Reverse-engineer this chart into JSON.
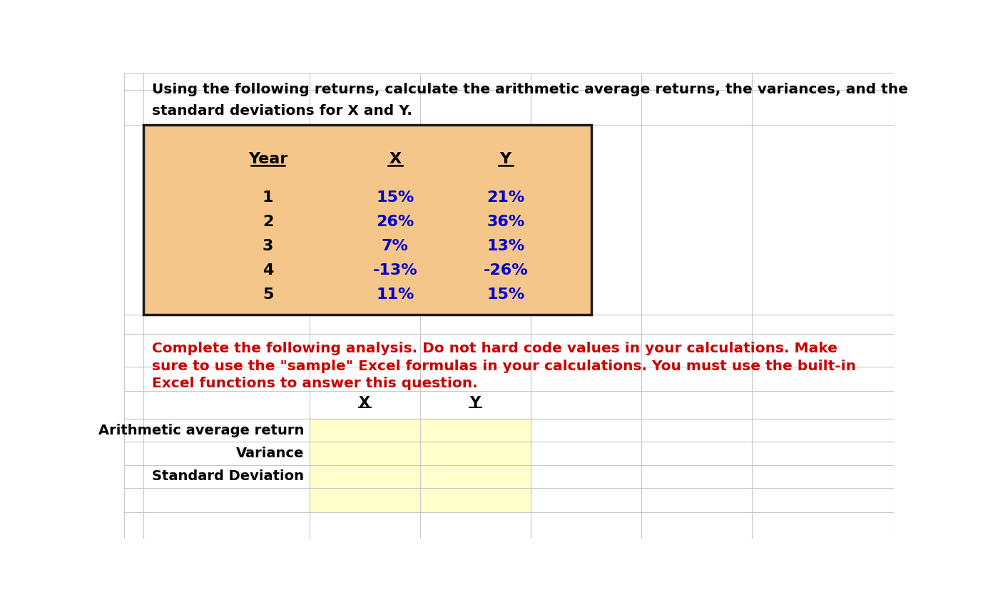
{
  "title_text1": "Using the following returns, calculate the arithmetic average returns, the variances, and the",
  "title_text2": "standard deviations for X and Y.",
  "table_bg_color": "#F4C68A",
  "table_border_color": "#1A1A1A",
  "years": [
    "1",
    "2",
    "3",
    "4",
    "5"
  ],
  "x_values": [
    "15%",
    "26%",
    "7%",
    "-13%",
    "11%"
  ],
  "y_values": [
    "21%",
    "36%",
    "13%",
    "-26%",
    "15%"
  ],
  "data_color": "#0000CC",
  "header_color": "#000000",
  "red_text1": "Complete the following analysis. Do not hard code values in your calculations. Make",
  "red_text2": "sure to use the \"sample\" Excel formulas in your calculations. You must use the built-in",
  "red_text3": "Excel functions to answer this question.",
  "red_color": "#CC0000",
  "bottom_labels": [
    "Arithmetic average return",
    "Variance",
    "Standard Deviation"
  ],
  "bottom_header_x": "X",
  "bottom_header_y": "Y",
  "yellow_bg": "#FFFFCC",
  "grid_color": "#C8C8C8",
  "white_bg": "#FFFFFF",
  "col_bounds": [
    0,
    35,
    335,
    535,
    735,
    935,
    1135,
    1392
  ],
  "row_bounds": [
    0,
    32,
    95,
    440,
    475,
    535,
    580,
    630,
    672,
    714,
    756,
    800,
    848
  ]
}
